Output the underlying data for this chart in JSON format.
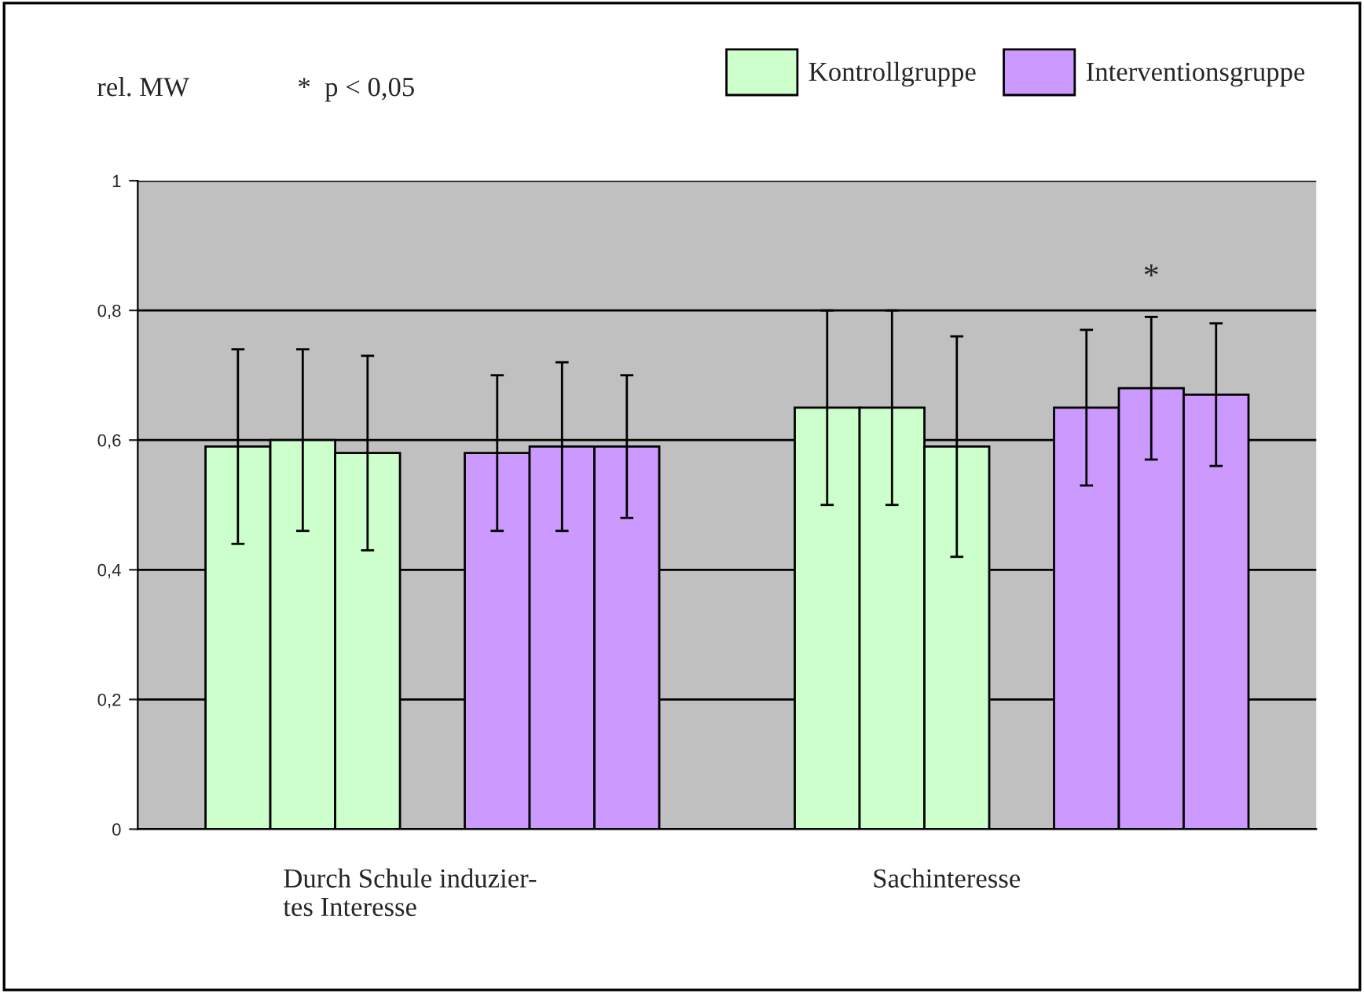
{
  "chart_data": {
    "type": "bar",
    "categories": [
      "Durch Schule induzier-\ntes Interesse",
      "Sachinteresse"
    ],
    "series": [
      {
        "name": "Kontrollgruppe",
        "color": "#ccffcc",
        "values": [
          0.59,
          0.65
        ],
        "errors": [
          0.15,
          0.15
        ]
      },
      {
        "color": "#ccffcc",
        "values": [
          0.6,
          0.65
        ],
        "errors": [
          0.14,
          0.15
        ]
      },
      {
        "color": "#ccffcc",
        "values": [
          0.58,
          0.59
        ],
        "errors": [
          0.15,
          0.17
        ]
      },
      {
        "name": "Interventionsgruppe",
        "color": "#cc99ff",
        "values": [
          0.58,
          0.65
        ],
        "errors": [
          0.12,
          0.12
        ]
      },
      {
        "color": "#cc99ff",
        "values": [
          0.59,
          0.68
        ],
        "errors": [
          0.13,
          0.11
        ]
      },
      {
        "color": "#cc99ff",
        "values": [
          0.59,
          0.67
        ],
        "errors": [
          0.11,
          0.11
        ]
      }
    ],
    "ylim": [
      0,
      1
    ],
    "yticks": [
      {
        "value": 0,
        "label": "0"
      },
      {
        "value": 0.2,
        "label": "0,2"
      },
      {
        "value": 0.4,
        "label": "0,4"
      },
      {
        "value": 0.6,
        "label": "0,6"
      },
      {
        "value": 0.8,
        "label": "0,8"
      },
      {
        "value": 1,
        "label": "1"
      }
    ],
    "grid": "y",
    "legend": "top",
    "annotations": [
      "rel. MW",
      "*  p < 0,05",
      "*"
    ]
  }
}
